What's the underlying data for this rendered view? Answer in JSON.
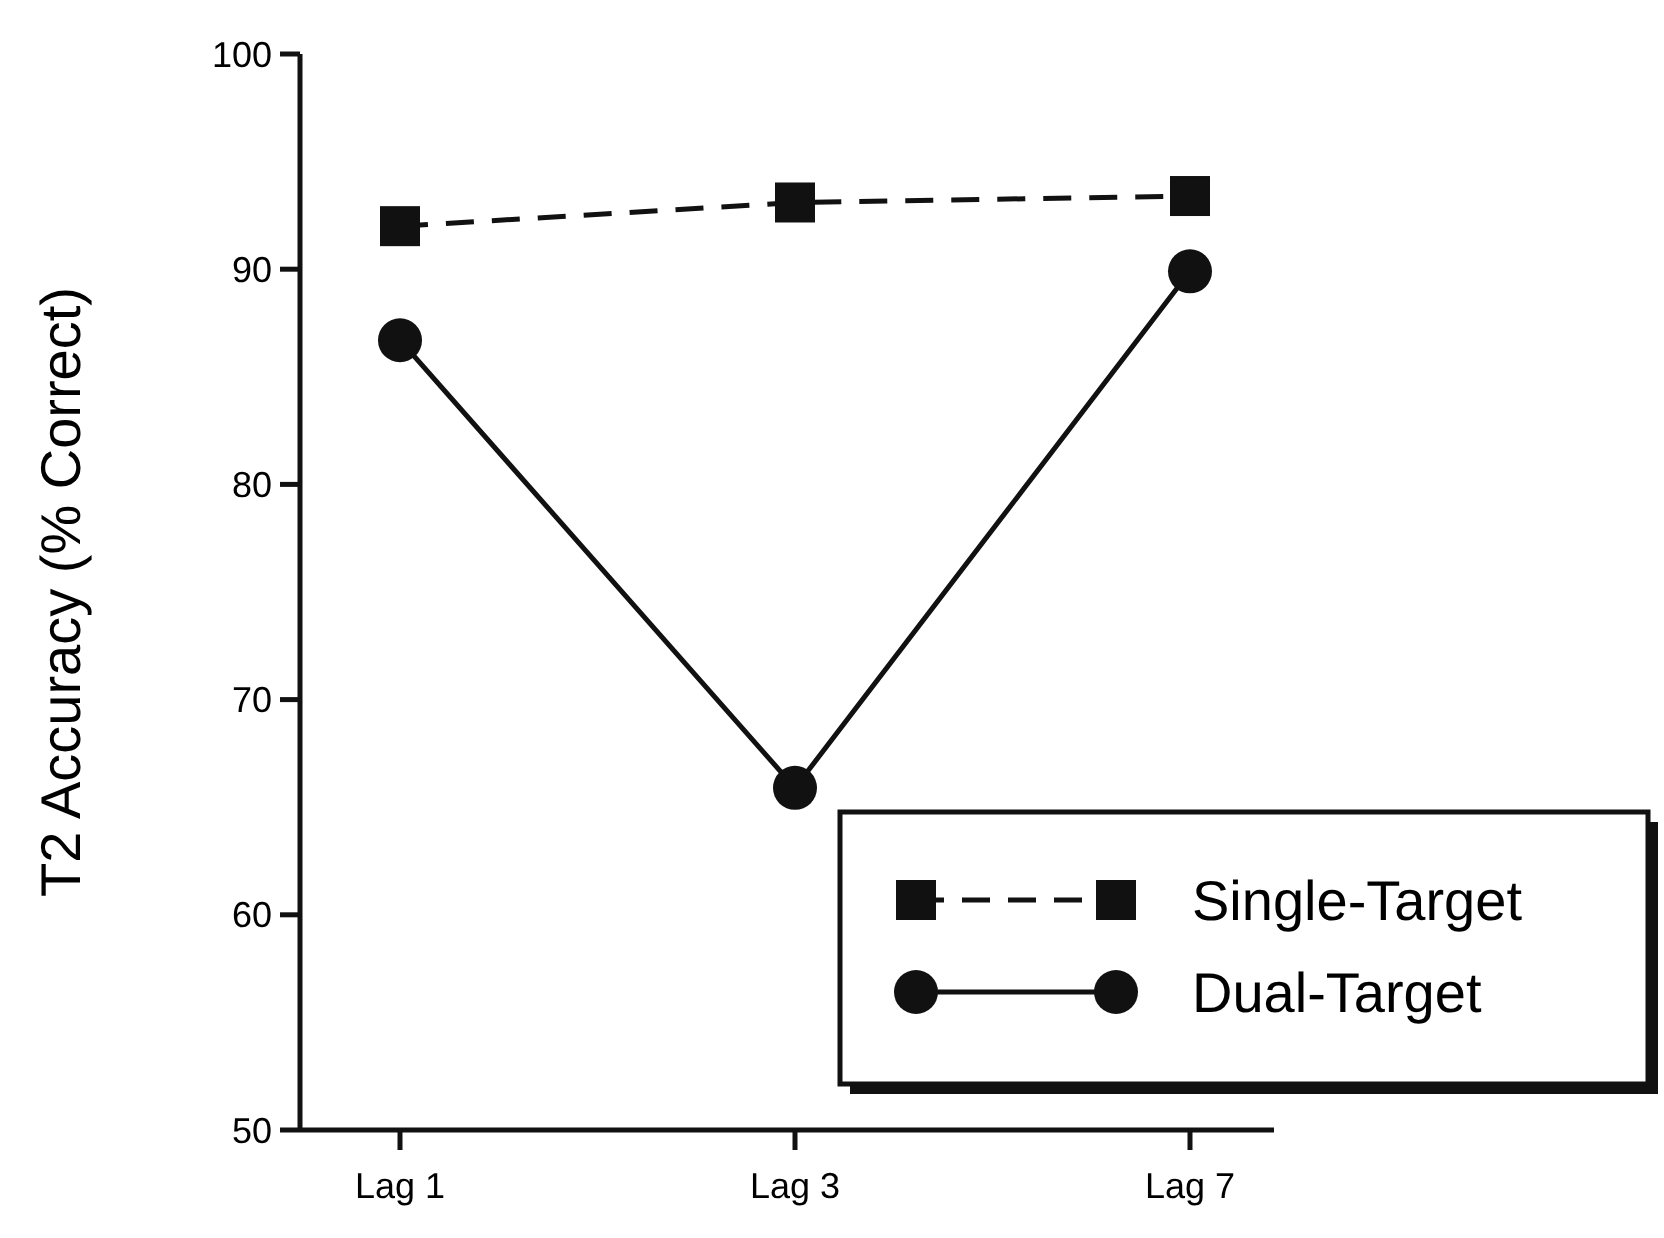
{
  "chart_data": {
    "type": "line",
    "ylabel": "T2 Accuracy (% Correct)",
    "categories": [
      "Lag 1",
      "Lag 3",
      "Lag 7"
    ],
    "series": [
      {
        "name": "Single-Target",
        "color": "#111111",
        "values": [
          92,
          93.1,
          93.4
        ],
        "marker": "square",
        "line_style": "dashed"
      },
      {
        "name": "Dual-Target",
        "color": "#111111",
        "values": [
          86.7,
          65.9,
          89.9
        ],
        "marker": "circle",
        "line_style": "solid"
      }
    ],
    "ylim": [
      50,
      100
    ],
    "yticks": [
      50,
      60,
      70,
      80,
      90,
      100
    ],
    "legend": "bottom right",
    "grid": false
  }
}
